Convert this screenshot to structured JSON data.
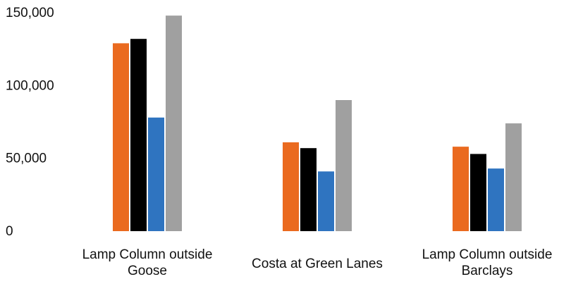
{
  "chart_data": {
    "type": "bar",
    "categories": [
      [
        "Lamp Column outside",
        "Goose"
      ],
      [
        "Costa at Green Lanes"
      ],
      [
        "Lamp Column outside",
        "Barclays"
      ]
    ],
    "series": [
      {
        "color": "#ea6a1f",
        "values": [
          129000,
          61000,
          58000
        ]
      },
      {
        "color": "#000000",
        "values": [
          132000,
          57000,
          53000
        ]
      },
      {
        "color": "#2f74c0",
        "values": [
          78000,
          41000,
          43000
        ]
      },
      {
        "color": "#a0a0a0",
        "values": [
          148000,
          90000,
          74000
        ]
      }
    ],
    "yticks": [
      "0",
      "50,000",
      "100,000",
      "150,000"
    ],
    "ylim": [
      0,
      150000
    ],
    "grid": false,
    "legend": "none"
  }
}
